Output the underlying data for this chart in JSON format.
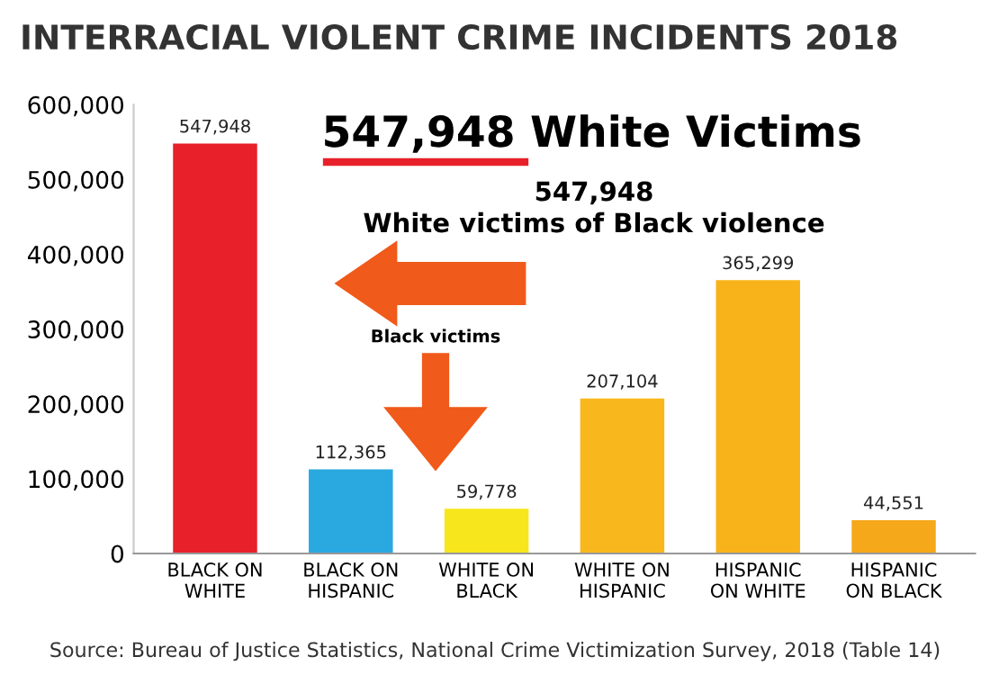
{
  "chart_data": {
    "type": "bar",
    "title": "INTERRACIAL VIOLENT CRIME INCIDENTS 2018",
    "categories": [
      "BLACK ON\nWHITE",
      "BLACK ON\nHISPANIC",
      "WHITE ON\nBLACK",
      "WHITE ON\nHISPANIC",
      "HISPANIC\nON WHITE",
      "HISPANIC\nON BLACK"
    ],
    "values": [
      547948,
      112365,
      59778,
      207104,
      365299,
      44551
    ],
    "value_labels": [
      "547,948",
      "112,365",
      "59,778",
      "207,104",
      "365,299",
      "44,551"
    ],
    "colors": [
      "#e8202a",
      "#2aa8e0",
      "#f7e61c",
      "#f8b71c",
      "#f8b31a",
      "#f5a81a"
    ],
    "ylim": [
      0,
      600000
    ],
    "yticks": [
      {
        "value": 0,
        "label": "0"
      },
      {
        "value": 100000,
        "label": "100,000"
      },
      {
        "value": 200000,
        "label": "200,000"
      },
      {
        "value": 300000,
        "label": "300,000"
      },
      {
        "value": 400000,
        "label": "400,000"
      },
      {
        "value": 500000,
        "label": "500,000"
      },
      {
        "value": 600000,
        "label": "600,000"
      }
    ],
    "annotations": [
      "547,948 White Victims",
      "547,948\nWhite victims of Black violence",
      "Black victims",
      "Source: Bureau of Justice Statistics, National Crime Victimization Survey, 2018 (Table 14)"
    ]
  }
}
